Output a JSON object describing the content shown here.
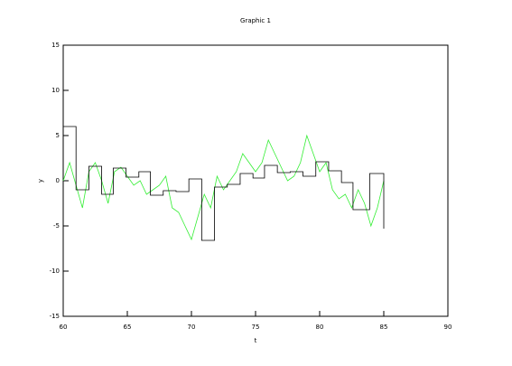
{
  "chart_data": {
    "type": "line",
    "title": "Graphic 1",
    "x_label": "t",
    "y_label": "y",
    "xlim": [
      60,
      90
    ],
    "xticks": [
      60,
      65,
      70,
      75,
      80,
      85,
      90
    ],
    "ylim": [
      -15,
      15
    ],
    "yticks": [
      -15,
      -10,
      -5,
      0,
      5,
      10,
      15
    ],
    "series": [
      {
        "color": "#33ee33",
        "x": [
          60,
          60.5,
          61,
          61.5,
          62,
          62.5,
          63,
          63.5,
          64,
          64.5,
          65,
          65.5,
          66,
          66.5,
          67,
          67.5,
          68,
          68.5,
          69,
          69.5,
          70,
          70.5,
          71,
          71.5,
          72,
          72.5,
          73,
          73.5,
          74,
          74.5,
          75,
          75.5,
          76,
          76.5,
          77,
          77.5,
          78,
          78.5,
          79,
          79.5,
          80,
          80.5,
          81,
          81.5,
          82,
          82.5,
          83,
          83.5,
          84,
          84.5,
          85
        ],
        "values": [
          0,
          2,
          -0.5,
          -3,
          1,
          2,
          0,
          -2.5,
          1,
          1.5,
          0.5,
          -0.5,
          0,
          -1.5,
          -1,
          -0.5,
          0.5,
          -3,
          -3.5,
          -5,
          -6.5,
          -4,
          -1.5,
          -3,
          0.5,
          -1,
          0,
          1,
          3,
          2,
          1,
          2,
          4.5,
          3,
          1.5,
          0,
          0.5,
          2,
          5,
          3,
          1,
          2,
          -1,
          -2,
          -1.5,
          -3,
          -1,
          -2.5,
          -5,
          -3,
          0
        ]
      },
      {
        "color": "#000000",
        "x": [
          60,
          61,
          61,
          62,
          62,
          63,
          63,
          63.9,
          63.9,
          64.9,
          64.9,
          65.9,
          65.9,
          66.8,
          66.8,
          67.8,
          67.8,
          68.8,
          68.8,
          69.8,
          69.8,
          70.8,
          70.8,
          71.8,
          71.8,
          72.8,
          72.8,
          73.8,
          73.8,
          74.8,
          74.8,
          75.7,
          75.7,
          76.7,
          76.7,
          77.7,
          77.7,
          78.7,
          78.7,
          79.7,
          79.7,
          80.7,
          80.7,
          81.7,
          81.7,
          82.6,
          82.6,
          83.9,
          83.9,
          85,
          85
        ],
        "values": [
          6,
          6,
          -1,
          -1,
          1.6,
          1.6,
          -1.5,
          -1.5,
          1.4,
          1.4,
          0.4,
          0.4,
          1,
          1,
          -1.6,
          -1.6,
          -1.1,
          -1.1,
          -1.2,
          -1.2,
          0.2,
          0.2,
          -6.6,
          -6.6,
          -0.7,
          -0.7,
          -0.4,
          -0.4,
          0.8,
          0.8,
          0.3,
          0.3,
          1.7,
          1.7,
          0.9,
          0.9,
          1,
          1,
          0.5,
          0.5,
          2.1,
          2.1,
          1.1,
          1.1,
          -0.2,
          -0.2,
          -3.2,
          -3.2,
          0.8,
          0.8,
          -5.3
        ]
      }
    ]
  }
}
